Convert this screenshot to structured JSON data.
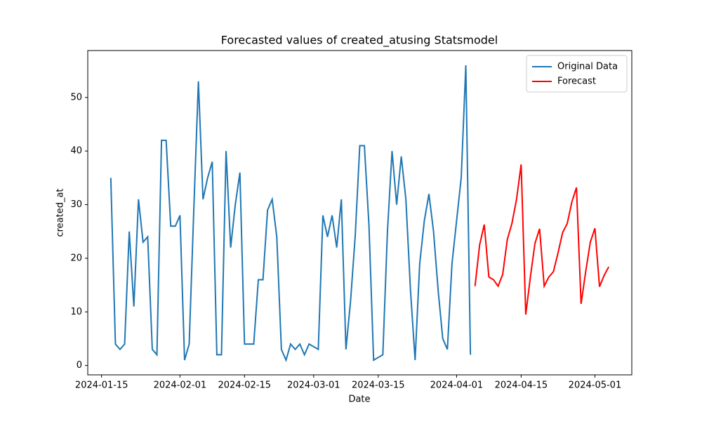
{
  "chart_data": {
    "type": "line",
    "title": "Forecasted values of created_atusing Statsmodel",
    "x_label": "Date",
    "y_label": "created_at",
    "series": [
      {
        "name": "Original Data",
        "color": "#1f77b4",
        "x": [
          "2024-01-17",
          "2024-01-18",
          "2024-01-19",
          "2024-01-20",
          "2024-01-21",
          "2024-01-22",
          "2024-01-23",
          "2024-01-24",
          "2024-01-25",
          "2024-01-26",
          "2024-01-27",
          "2024-01-28",
          "2024-01-29",
          "2024-01-30",
          "2024-01-31",
          "2024-02-01",
          "2024-02-02",
          "2024-02-03",
          "2024-02-04",
          "2024-02-05",
          "2024-02-06",
          "2024-02-07",
          "2024-02-08",
          "2024-02-09",
          "2024-02-10",
          "2024-02-11",
          "2024-02-12",
          "2024-02-13",
          "2024-02-14",
          "2024-02-15",
          "2024-02-16",
          "2024-02-17",
          "2024-02-18",
          "2024-02-19",
          "2024-02-20",
          "2024-02-21",
          "2024-02-22",
          "2024-02-23",
          "2024-02-24",
          "2024-02-25",
          "2024-02-26",
          "2024-02-27",
          "2024-02-28",
          "2024-02-29",
          "2024-03-01",
          "2024-03-02",
          "2024-03-03",
          "2024-03-04",
          "2024-03-05",
          "2024-03-06",
          "2024-03-07",
          "2024-03-08",
          "2024-03-09",
          "2024-03-10",
          "2024-03-11",
          "2024-03-12",
          "2024-03-13",
          "2024-03-14",
          "2024-03-15",
          "2024-03-16",
          "2024-03-17",
          "2024-03-18",
          "2024-03-19",
          "2024-03-20",
          "2024-03-21",
          "2024-03-22",
          "2024-03-23",
          "2024-03-24",
          "2024-03-25",
          "2024-03-26",
          "2024-03-27",
          "2024-03-28",
          "2024-03-29",
          "2024-03-30",
          "2024-03-31",
          "2024-04-01",
          "2024-04-02",
          "2024-04-03",
          "2024-04-04"
        ],
        "values": [
          35,
          4,
          3,
          4,
          25,
          11,
          31,
          23,
          24,
          3,
          2,
          42,
          42,
          26,
          26,
          28,
          1,
          4,
          29,
          53,
          31,
          35,
          38,
          2,
          2,
          40,
          22,
          30,
          36,
          4,
          4,
          4,
          16,
          16,
          29,
          31,
          24,
          3,
          1,
          4,
          3,
          4,
          2,
          4,
          3.5,
          3,
          28,
          24,
          28,
          22,
          31,
          3,
          12,
          24,
          41,
          41,
          26,
          1,
          1.5,
          2,
          25,
          40,
          30,
          39,
          31,
          14,
          1,
          19,
          27,
          32,
          25,
          14,
          5,
          3,
          19,
          27,
          35,
          56,
          2
        ]
      },
      {
        "name": "Forecast",
        "color": "#ff0000",
        "x": [
          "2024-04-05",
          "2024-04-06",
          "2024-04-07",
          "2024-04-08",
          "2024-04-09",
          "2024-04-10",
          "2024-04-11",
          "2024-04-12",
          "2024-04-13",
          "2024-04-14",
          "2024-04-15",
          "2024-04-16",
          "2024-04-17",
          "2024-04-18",
          "2024-04-19",
          "2024-04-20",
          "2024-04-21",
          "2024-04-22",
          "2024-04-23",
          "2024-04-24",
          "2024-04-25",
          "2024-04-26",
          "2024-04-27",
          "2024-04-28",
          "2024-04-29",
          "2024-04-30",
          "2024-05-01",
          "2024-05-02",
          "2024-05-03",
          "2024-05-04"
        ],
        "values": [
          14.8,
          22.5,
          26.3,
          16.5,
          16,
          14.8,
          17,
          23.5,
          26.5,
          31,
          37.5,
          9.5,
          16.5,
          22.8,
          25.5,
          14.8,
          16.5,
          17.5,
          21,
          24.8,
          26.5,
          30.5,
          33.2,
          11.5,
          17.5,
          23,
          25.6,
          14.7,
          16.8,
          18.4
        ]
      }
    ],
    "xlim": [
      "2024-01-12",
      "2024-05-09"
    ],
    "xticks": [
      "2024-01-15",
      "2024-02-01",
      "2024-02-15",
      "2024-03-01",
      "2024-03-15",
      "2024-04-01",
      "2024-04-15",
      "2024-05-01"
    ],
    "ylim": [
      -1.75,
      58.75
    ],
    "yticks": [
      0,
      10,
      20,
      30,
      40,
      50
    ],
    "legend": "upper right"
  }
}
